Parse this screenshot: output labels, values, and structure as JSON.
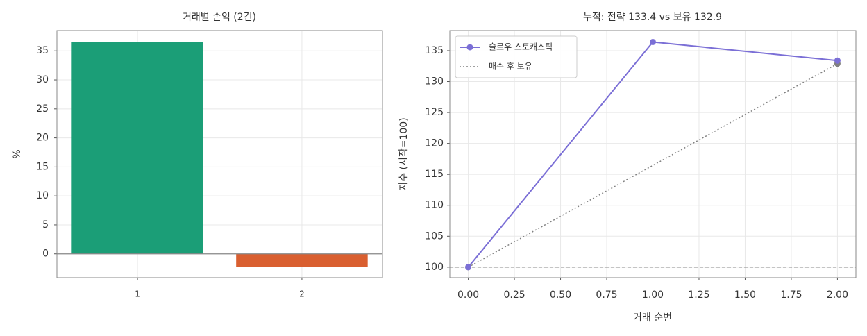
{
  "chart_data": [
    {
      "type": "bar",
      "title": "거래별 손익 (2건)",
      "ylabel": "%",
      "categories": [
        "1",
        "2"
      ],
      "values": [
        36.5,
        -2.3
      ],
      "colors": [
        "#1b9e77",
        "#d95f30"
      ],
      "ylim": [
        -4.1,
        38.5
      ],
      "yticks": [
        0,
        5,
        10,
        15,
        20,
        25,
        30,
        35
      ],
      "grid": true
    },
    {
      "type": "line",
      "title": "누적: 전략 133.4 vs 보유 132.9",
      "xlabel": "거래 순번",
      "ylabel": "지수 (시작=100)",
      "series": [
        {
          "name": "슬로우 스토캐스틱",
          "color": "#7b6fd6",
          "style": "solid",
          "x": [
            0,
            1,
            2
          ],
          "values": [
            100,
            136.4,
            133.4
          ]
        },
        {
          "name": "매수 후 보유",
          "color": "#808080",
          "style": "dotted",
          "x": [
            0,
            2
          ],
          "values": [
            100,
            132.9
          ]
        }
      ],
      "hline": 100,
      "xlim": [
        -0.1,
        2.1
      ],
      "ylim": [
        98.3,
        138.25
      ],
      "xticks": [
        {
          "value": 0,
          "label": "0.00"
        },
        {
          "value": 0.25,
          "label": "0.25"
        },
        {
          "value": 0.5,
          "label": "0.50"
        },
        {
          "value": 0.75,
          "label": "0.75"
        },
        {
          "value": 1,
          "label": "1.00"
        },
        {
          "value": 1.25,
          "label": "1.25"
        },
        {
          "value": 1.5,
          "label": "1.50"
        },
        {
          "value": 1.75,
          "label": "1.75"
        },
        {
          "value": 2,
          "label": "2.00"
        }
      ],
      "yticks": [
        100,
        105,
        110,
        115,
        120,
        125,
        130,
        135
      ],
      "grid": true,
      "legend": "upper left"
    }
  ]
}
